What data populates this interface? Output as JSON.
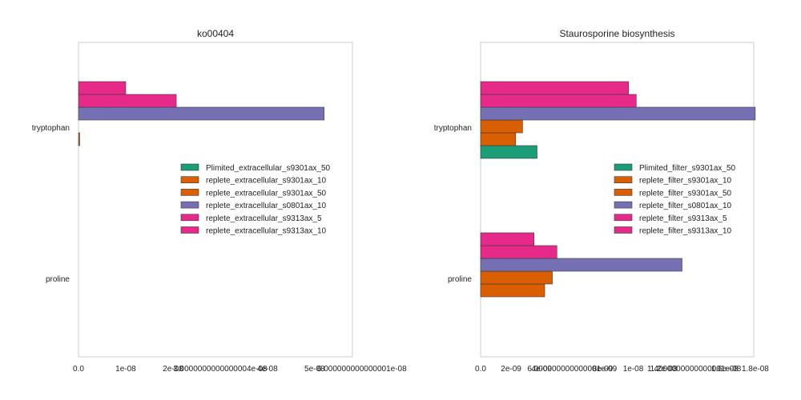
{
  "chart_data": [
    {
      "type": "bar",
      "orientation": "horizontal",
      "title": "ko00404",
      "categories": [
        "tryptophan",
        "proline"
      ],
      "xlim": [
        0,
        5.8e-08
      ],
      "xticks": [
        "0.0",
        "1e-08",
        "2e-08",
        "3.0000000000000004e-08",
        "4e-08",
        "5e-08",
        "6.000000000000001e-08"
      ],
      "grid": false,
      "legend_position": "center-right",
      "series": [
        {
          "name": "Plimited_extracellular_s9301ax_50",
          "color": "#1b9e77",
          "values": [
            0,
            0
          ]
        },
        {
          "name": "replete_extracellular_s9301ax_10",
          "color": "#d95f02",
          "values": [
            2.5e-10,
            0
          ]
        },
        {
          "name": "replete_extracellular_s9301ax_50",
          "color": "#d95f02",
          "values": [
            0,
            0
          ]
        },
        {
          "name": "replete_extracellular_s0801ax_10",
          "color": "#7570b3",
          "values": [
            5.2e-08,
            0
          ]
        },
        {
          "name": "replete_extracellular_s9313ax_5",
          "color": "#e7298a",
          "values": [
            2.07e-08,
            0
          ]
        },
        {
          "name": "replete_extracellular_s9313ax_10",
          "color": "#e7298a",
          "values": [
            1e-08,
            0
          ]
        }
      ]
    },
    {
      "type": "bar",
      "orientation": "horizontal",
      "title": "Staurosporine biosynthesis",
      "categories": [
        "tryptophan",
        "proline"
      ],
      "xlim": [
        0,
        1.79e-08
      ],
      "xticks": [
        "0.0",
        "2e-09",
        "4e-09",
        "6.000000000000001e-09",
        "8e-09",
        "1e-08",
        "1.2e-08",
        "1.4000000000000001e-08",
        "1.6e-08",
        "1.8e-08"
      ],
      "grid": false,
      "legend_position": "center-right",
      "series": [
        {
          "name": "Plimited_filter_s9301ax_50",
          "color": "#1b9e77",
          "values": [
            3.7e-09,
            0
          ]
        },
        {
          "name": "replete_filter_s9301ax_10",
          "color": "#d95f02",
          "values": [
            2.3e-09,
            4.2e-09
          ]
        },
        {
          "name": "replete_filter_s9301ax_50",
          "color": "#d95f02",
          "values": [
            2.75e-09,
            4.7e-09
          ]
        },
        {
          "name": "replete_filter_s0801ax_10",
          "color": "#7570b3",
          "values": [
            1.8e-08,
            1.32e-08
          ]
        },
        {
          "name": "replete_filter_s9313ax_5",
          "color": "#e7298a",
          "values": [
            1.02e-08,
            5e-09
          ]
        },
        {
          "name": "replete_filter_s9313ax_10",
          "color": "#e7298a",
          "values": [
            9.7e-09,
            3.5e-09
          ]
        }
      ]
    }
  ]
}
